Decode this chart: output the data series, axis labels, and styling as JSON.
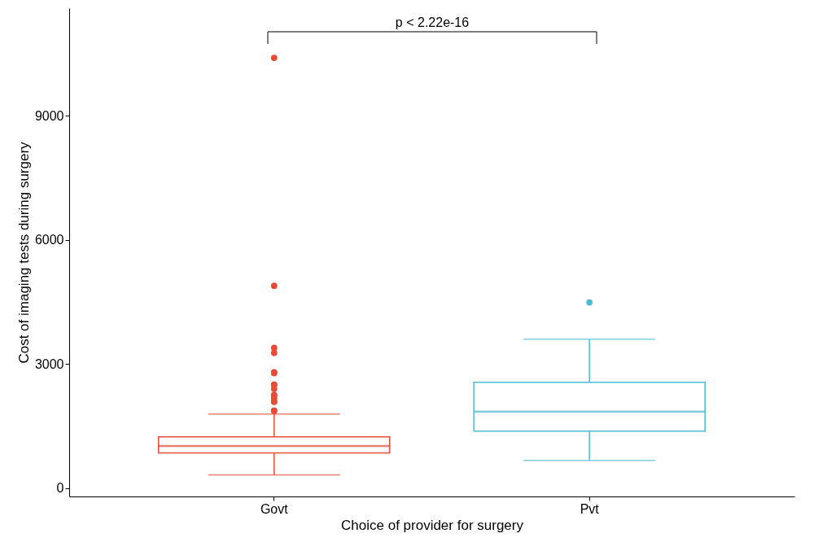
{
  "chart_data": {
    "type": "box",
    "xlabel": "Choice of provider for surgery",
    "ylabel": "Cost of imaging tests during surgery",
    "categories": [
      "Govt",
      "Pvt"
    ],
    "colors": [
      "#e64b35",
      "#4dbbd5"
    ],
    "boxes": [
      {
        "low": 320,
        "q1": 850,
        "median": 1020,
        "q3": 1240,
        "high": 1790,
        "outliers": [
          10400,
          4890,
          3390,
          3270,
          2800,
          2780,
          2500,
          2500,
          2400,
          2250,
          2250,
          2170,
          2090,
          2090,
          1870,
          1870
        ]
      },
      {
        "low": 670,
        "q1": 1380,
        "median": 1850,
        "q3": 2560,
        "high": 3600,
        "outliers": [
          4490
        ]
      }
    ],
    "ylim": [
      -200,
      11600
    ],
    "yticks": [
      0,
      3000,
      6000,
      9000
    ],
    "annotations": [
      "p < 2.22e-16"
    ]
  }
}
